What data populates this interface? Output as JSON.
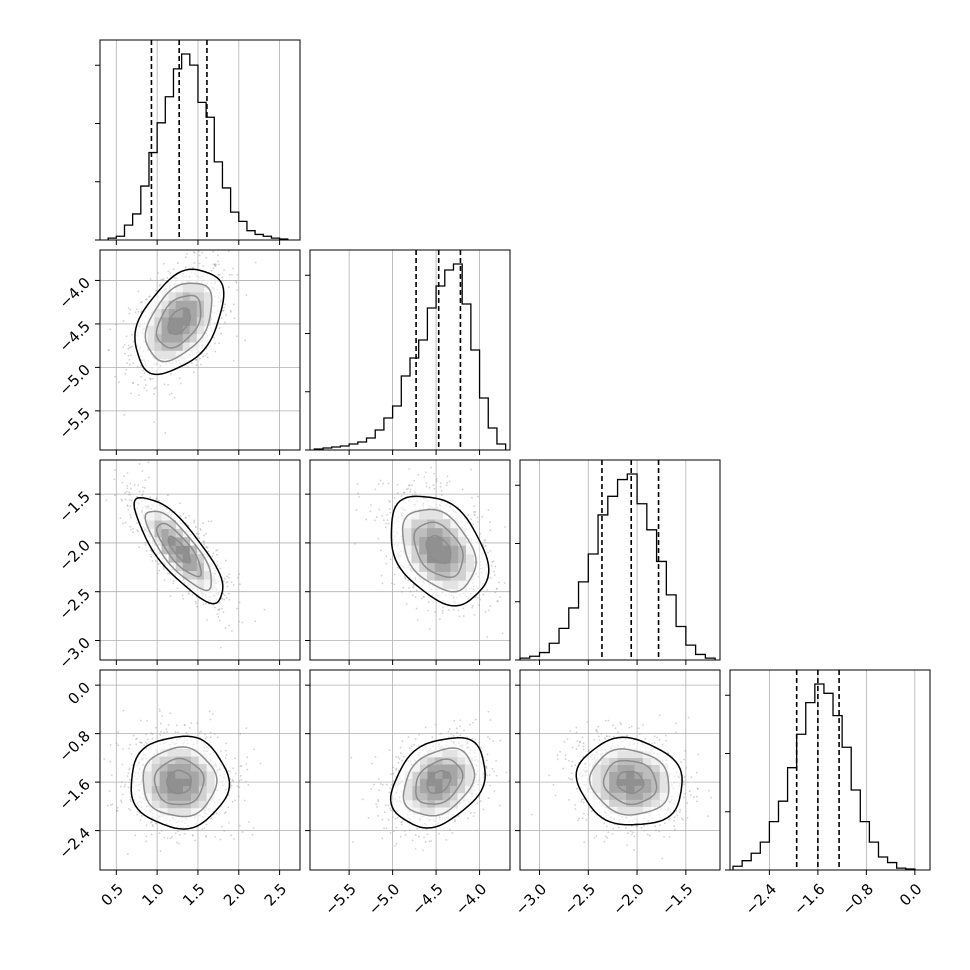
{
  "colors": {
    "line": "#000000",
    "grid": "#b0b0b0",
    "scatter": "#9a9a9a",
    "density": [
      "#ffffff",
      "#e4e4e4",
      "#c2c2c2",
      "#9a9a9a",
      "#6e6e6e",
      "#3a3a3a",
      "#0a0a0a"
    ]
  },
  "chart_data": {
    "type": "corner",
    "grid": true,
    "parameters": [
      {
        "ticks": [
          0.5,
          1.0,
          1.5,
          2.0,
          2.5
        ],
        "tick_labels": [
          "0.5",
          "1.0",
          "1.5",
          "2.0",
          "2.5"
        ],
        "range": [
          0.3,
          2.75
        ],
        "quantiles": [
          0.93,
          1.27,
          1.61
        ],
        "hist_bin_edges": [
          0.4,
          0.5,
          0.6,
          0.7,
          0.8,
          0.9,
          1.0,
          1.1,
          1.2,
          1.3,
          1.4,
          1.5,
          1.6,
          1.7,
          1.8,
          1.9,
          2.0,
          2.1,
          2.2,
          2.3,
          2.4,
          2.5,
          2.6
        ],
        "hist_counts": [
          0.01,
          0.02,
          0.08,
          0.14,
          0.29,
          0.47,
          0.63,
          0.77,
          0.92,
          1.0,
          0.94,
          0.74,
          0.66,
          0.42,
          0.28,
          0.15,
          0.1,
          0.05,
          0.03,
          0.02,
          0.01,
          0.005
        ]
      },
      {
        "ticks": [
          -5.5,
          -5.0,
          -4.5,
          -4.0
        ],
        "tick_labels": [
          "−5.5",
          "−5.0",
          "−4.5",
          "−4.0"
        ],
        "range": [
          -5.95,
          -3.65
        ],
        "quantiles": [
          -4.73,
          -4.47,
          -4.22
        ],
        "hist_bin_edges": [
          -5.9,
          -5.8,
          -5.7,
          -5.6,
          -5.5,
          -5.4,
          -5.3,
          -5.2,
          -5.1,
          -5.0,
          -4.9,
          -4.8,
          -4.7,
          -4.6,
          -4.5,
          -4.4,
          -4.3,
          -4.2,
          -4.1,
          -4.0,
          -3.9,
          -3.8,
          -3.7
        ],
        "hist_counts": [
          0.005,
          0.01,
          0.015,
          0.02,
          0.03,
          0.04,
          0.06,
          0.1,
          0.16,
          0.22,
          0.37,
          0.46,
          0.55,
          0.71,
          0.82,
          0.9,
          0.93,
          0.73,
          0.5,
          0.26,
          0.11,
          0.03
        ]
      },
      {
        "ticks": [
          -3.0,
          -2.5,
          -2.0,
          -1.5
        ],
        "tick_labels": [
          "−3.0",
          "−2.5",
          "−2.0",
          "−1.5"
        ],
        "range": [
          -3.2,
          -1.15
        ],
        "quantiles": [
          -2.36,
          -2.06,
          -1.78
        ],
        "hist_bin_edges": [
          -3.2,
          -3.1,
          -3.0,
          -2.9,
          -2.8,
          -2.7,
          -2.6,
          -2.5,
          -2.4,
          -2.3,
          -2.2,
          -2.1,
          -2.0,
          -1.9,
          -1.8,
          -1.7,
          -1.6,
          -1.5,
          -1.4,
          -1.3,
          -1.2
        ],
        "hist_counts": [
          0.01,
          0.02,
          0.04,
          0.09,
          0.17,
          0.28,
          0.42,
          0.57,
          0.78,
          0.88,
          0.97,
          1.0,
          0.84,
          0.7,
          0.53,
          0.35,
          0.18,
          0.08,
          0.03,
          0.01
        ]
      },
      {
        "ticks": [
          -2.4,
          -1.6,
          -0.8,
          0.0
        ],
        "tick_labels": [
          "−2.4",
          "−1.6",
          "−0.8",
          "0.0"
        ],
        "range": [
          -3.05,
          0.25
        ],
        "quantiles": [
          -1.95,
          -1.6,
          -1.25
        ],
        "hist_bin_edges": [
          -3.0,
          -2.85,
          -2.7,
          -2.55,
          -2.4,
          -2.25,
          -2.1,
          -1.95,
          -1.8,
          -1.65,
          -1.5,
          -1.35,
          -1.2,
          -1.05,
          -0.9,
          -0.75,
          -0.6,
          -0.45,
          -0.3,
          -0.15,
          0.0
        ],
        "hist_counts": [
          0.02,
          0.05,
          0.09,
          0.15,
          0.26,
          0.37,
          0.55,
          0.73,
          0.9,
          1.0,
          0.95,
          0.83,
          0.66,
          0.43,
          0.26,
          0.15,
          0.07,
          0.04,
          0.01,
          0.005
        ]
      }
    ],
    "pairs": [
      {
        "x": 0,
        "y": 1,
        "mean": [
          1.27,
          -4.47
        ],
        "sd": [
          0.27,
          0.3
        ],
        "rho": 0.42,
        "peak": [
          1.27,
          -4.4
        ]
      },
      {
        "x": 0,
        "y": 2,
        "mean": [
          1.27,
          -2.07
        ],
        "sd": [
          0.27,
          0.27
        ],
        "rho": -0.8,
        "peak": [
          1.2,
          -2.12
        ]
      },
      {
        "x": 1,
        "y": 2,
        "mean": [
          -4.47,
          -2.07
        ],
        "sd": [
          0.28,
          0.28
        ],
        "rho": -0.35,
        "peak": [
          -4.47,
          -2.07
        ]
      },
      {
        "x": 0,
        "y": 3,
        "mean": [
          1.27,
          -1.6
        ],
        "sd": [
          0.3,
          0.38
        ],
        "rho": 0.0,
        "peak": [
          1.2,
          -1.6
        ]
      },
      {
        "x": 1,
        "y": 3,
        "mean": [
          -4.47,
          -1.6
        ],
        "sd": [
          0.27,
          0.37
        ],
        "rho": 0.3,
        "peak": [
          -4.4,
          -1.6
        ]
      },
      {
        "x": 2,
        "y": 3,
        "mean": [
          -2.07,
          -1.6
        ],
        "sd": [
          0.27,
          0.36
        ],
        "rho": -0.1,
        "peak": [
          -2.1,
          -1.6
        ]
      }
    ],
    "contour_levels_sigma": [
      0.5,
      1.0,
      1.5,
      2.0
    ]
  }
}
